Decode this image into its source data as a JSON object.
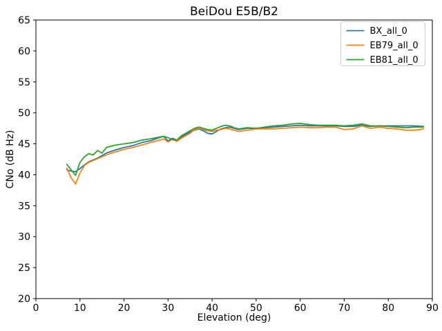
{
  "chart_data": {
    "type": "line",
    "title": "BeiDou E5B/B2",
    "xlabel": "Elevation (deg)",
    "ylabel": "CNo (dB Hz)",
    "xlim": [
      0,
      90
    ],
    "ylim": [
      20,
      65
    ],
    "xticks": [
      0,
      10,
      20,
      30,
      40,
      50,
      60,
      70,
      80,
      90
    ],
    "yticks": [
      20,
      25,
      30,
      35,
      40,
      45,
      50,
      55,
      60,
      65
    ],
    "grid": false,
    "legend_position": "upper right",
    "legend_border_color": "#cccccc",
    "axis_color": "#000000",
    "x": [
      7,
      8,
      9,
      10,
      11,
      12,
      13,
      14,
      15,
      16,
      18,
      20,
      22,
      24,
      26,
      28,
      29,
      30,
      31,
      32,
      33,
      34,
      35,
      36,
      37,
      38,
      39,
      40,
      41,
      42,
      43,
      44,
      45,
      46,
      48,
      50,
      52,
      54,
      56,
      58,
      60,
      62,
      64,
      66,
      68,
      70,
      72,
      74,
      76,
      78,
      80,
      82,
      84,
      86,
      88
    ],
    "series": [
      {
        "name": "BX_all_0",
        "color": "#1f77b4",
        "values": [
          40.8,
          40.6,
          40.5,
          41.0,
          41.6,
          42.1,
          42.4,
          42.7,
          43.1,
          43.5,
          44.0,
          44.4,
          44.7,
          45.2,
          45.5,
          46.0,
          46.2,
          45.5,
          45.9,
          45.6,
          46.1,
          46.5,
          46.9,
          47.2,
          47.4,
          47.1,
          46.7,
          46.6,
          47.0,
          47.4,
          47.6,
          47.7,
          47.5,
          47.3,
          47.5,
          47.5,
          47.6,
          47.7,
          47.8,
          47.9,
          48.0,
          47.9,
          47.9,
          47.9,
          47.9,
          47.8,
          47.8,
          48.0,
          47.8,
          47.9,
          47.9,
          47.9,
          47.9,
          47.9,
          47.8
        ]
      },
      {
        "name": "EB79_all_0",
        "color": "#ff7f0e",
        "values": [
          41.1,
          39.5,
          38.5,
          40.3,
          41.5,
          42.0,
          42.3,
          42.6,
          42.9,
          43.2,
          43.7,
          44.1,
          44.4,
          44.8,
          45.2,
          45.6,
          45.8,
          45.3,
          45.7,
          45.4,
          45.9,
          46.3,
          46.7,
          47.3,
          47.5,
          47.3,
          47.1,
          47.0,
          47.2,
          47.3,
          47.5,
          47.4,
          47.2,
          47.0,
          47.2,
          47.4,
          47.4,
          47.4,
          47.5,
          47.6,
          47.7,
          47.6,
          47.6,
          47.7,
          47.7,
          47.3,
          47.4,
          47.9,
          47.5,
          47.7,
          47.5,
          47.4,
          47.2,
          47.2,
          47.4
        ]
      },
      {
        "name": "EB81_all_0",
        "color": "#2ca02c",
        "values": [
          41.7,
          40.8,
          39.9,
          42.0,
          42.9,
          43.4,
          43.2,
          43.9,
          43.5,
          44.4,
          44.8,
          45.0,
          45.2,
          45.6,
          45.8,
          46.1,
          46.2,
          46.0,
          45.7,
          45.6,
          46.3,
          46.7,
          47.1,
          47.5,
          47.7,
          47.5,
          47.3,
          47.2,
          47.5,
          47.8,
          48.0,
          47.9,
          47.6,
          47.4,
          47.6,
          47.5,
          47.7,
          47.9,
          48.0,
          48.2,
          48.3,
          48.1,
          48.0,
          48.0,
          48.0,
          47.9,
          48.0,
          48.2,
          47.9,
          47.9,
          47.8,
          47.7,
          47.6,
          47.7,
          47.7
        ]
      }
    ]
  }
}
